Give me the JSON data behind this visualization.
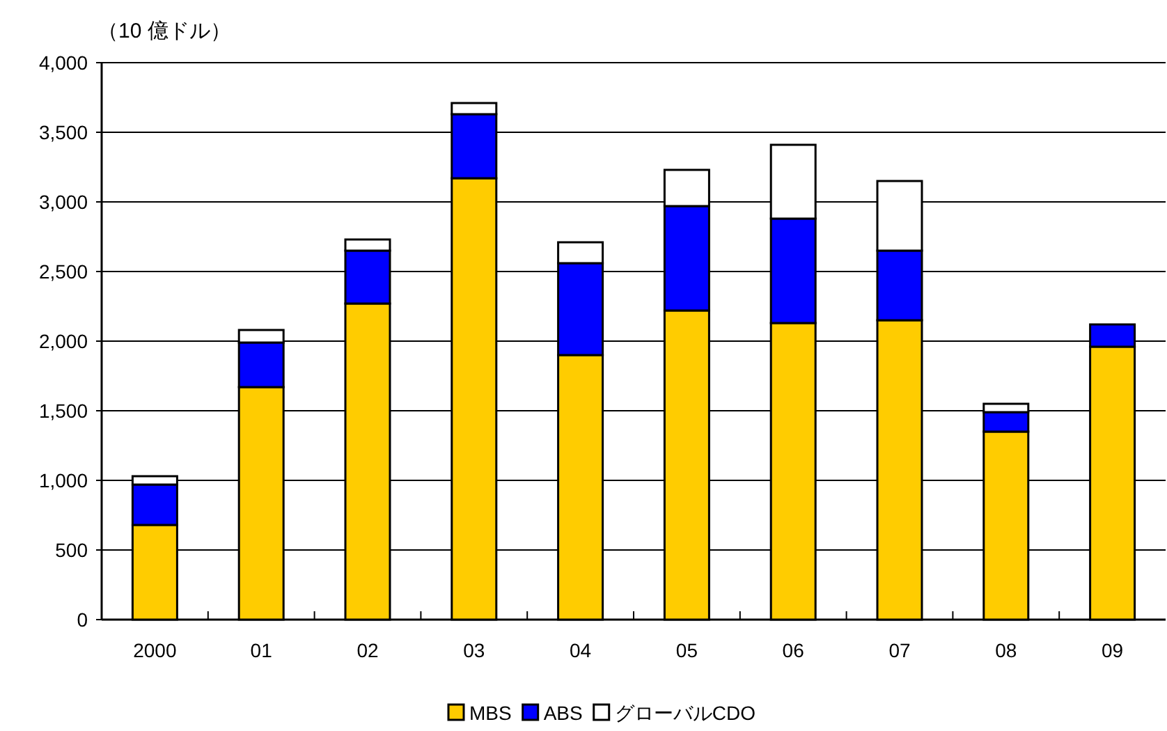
{
  "chart_data": {
    "type": "bar",
    "stacked": true,
    "ylabel": "（10 億ドル）",
    "categories": [
      "2000",
      "01",
      "02",
      "03",
      "04",
      "05",
      "06",
      "07",
      "08",
      "09"
    ],
    "series": [
      {
        "name": "MBS",
        "color": "#ffcc00",
        "values": [
          680,
          1670,
          2270,
          3170,
          1900,
          2220,
          2130,
          2150,
          1350,
          1960
        ]
      },
      {
        "name": "ABS",
        "color": "#0000ff",
        "values": [
          290,
          320,
          380,
          460,
          660,
          750,
          750,
          500,
          140,
          160
        ]
      },
      {
        "name": "グローバルCDO",
        "color": "#ffffff",
        "values": [
          60,
          90,
          80,
          80,
          150,
          260,
          530,
          500,
          60,
          null
        ]
      }
    ],
    "ylim": [
      0,
      4000
    ],
    "yticks": [
      {
        "value": 0,
        "label": "0"
      },
      {
        "value": 500,
        "label": "500"
      },
      {
        "value": 1000,
        "label": "1,000"
      },
      {
        "value": 1500,
        "label": "1,500"
      },
      {
        "value": 2000,
        "label": "2,000"
      },
      {
        "value": 2500,
        "label": "2,500"
      },
      {
        "value": 3000,
        "label": "3,000"
      },
      {
        "value": 3500,
        "label": "3,500"
      },
      {
        "value": 4000,
        "label": "4,000"
      }
    ],
    "grid": "y",
    "legend": "bottom"
  }
}
